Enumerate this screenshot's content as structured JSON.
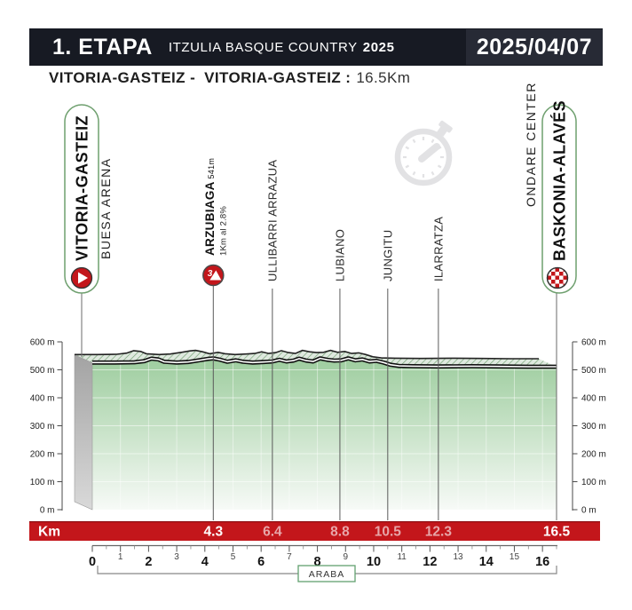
{
  "header": {
    "stage": "1. ETAPA",
    "race": "ITZULIA BASQUE COUNTRY",
    "year": "2025",
    "date": "2025/04/07"
  },
  "route": {
    "start": "VITORIA-GASTEIZ -",
    "finish": "VITORIA-GASTEIZ :",
    "distance": "16.5Km"
  },
  "colors": {
    "header_bg": "#171a23",
    "header_panel_bg": "#272a35",
    "accent_red": "#c3161b",
    "km_label_light": "#e7a6a9",
    "pill_border": "#6fa06f",
    "region_border": "#62a06f",
    "profile_green_top": "#9acb9b",
    "profile_green_bottom": "#f7faf7",
    "hatch_line": "#719f71",
    "hatch_bg": "#dfe9df",
    "side_gray_top": "#a3a3a3",
    "side_gray_bottom": "#d9d9d9",
    "stopwatch_gray": "#e2e2e4",
    "road_black": "#101010"
  },
  "chart_data": {
    "type": "area",
    "title": "Stage elevation profile",
    "xlabel": "Km",
    "x_unit": "km",
    "y_unit": "m",
    "xlim": [
      0,
      16.5
    ],
    "ylim": [
      0,
      600
    ],
    "y_ticks": [
      600,
      500,
      400,
      300,
      200,
      100,
      0
    ],
    "ruler_max": 16,
    "ruler_end": 16.5,
    "region_label": "ARABA",
    "profile": [
      [
        0,
        526
      ],
      [
        0.8,
        526
      ],
      [
        1.5,
        527
      ],
      [
        1.85,
        531
      ],
      [
        2.1,
        540
      ],
      [
        2.35,
        537
      ],
      [
        2.55,
        529
      ],
      [
        3.0,
        526
      ],
      [
        3.4,
        528
      ],
      [
        3.8,
        534
      ],
      [
        4.1,
        539
      ],
      [
        4.3,
        541
      ],
      [
        4.55,
        536
      ],
      [
        4.8,
        529
      ],
      [
        5.1,
        534
      ],
      [
        5.35,
        529
      ],
      [
        5.7,
        526
      ],
      [
        6.1,
        528
      ],
      [
        6.4,
        530
      ],
      [
        6.65,
        536
      ],
      [
        6.9,
        530
      ],
      [
        7.15,
        533
      ],
      [
        7.35,
        540
      ],
      [
        7.6,
        533
      ],
      [
        7.85,
        530
      ],
      [
        8.1,
        541
      ],
      [
        8.35,
        536
      ],
      [
        8.6,
        533
      ],
      [
        8.85,
        534
      ],
      [
        9.1,
        541
      ],
      [
        9.35,
        534
      ],
      [
        9.6,
        537
      ],
      [
        9.85,
        530
      ],
      [
        10.1,
        532
      ],
      [
        10.35,
        526
      ],
      [
        10.6,
        518
      ],
      [
        10.9,
        514
      ],
      [
        11.4,
        513
      ],
      [
        12.3,
        512
      ],
      [
        13.5,
        513
      ],
      [
        14.5,
        512
      ],
      [
        15.5,
        511
      ],
      [
        16.5,
        511
      ]
    ],
    "waypoints": [
      {
        "name": "VITORIA-GASTEIZ",
        "sub": "BUESA ARENA",
        "km": 0,
        "type": "start"
      },
      {
        "name": "ARZUBIAGA",
        "elev": "541m",
        "note": "1Km al 2.8%",
        "km": 4.3,
        "type": "climb",
        "category": "3"
      },
      {
        "name": "ULLIBARRI ARRAZUA",
        "km": 6.4,
        "type": "pass"
      },
      {
        "name": "LUBIANO",
        "km": 8.8,
        "type": "pass"
      },
      {
        "name": "JUNGITU",
        "km": 10.5,
        "type": "pass"
      },
      {
        "name": "ILARRATZA",
        "km": 12.3,
        "type": "pass"
      },
      {
        "name": "BASKONIA-ALAVÉS",
        "sub": "ONDARE CENTER",
        "km": 16.5,
        "type": "finish"
      }
    ],
    "icons": [
      "stopwatch-icon",
      "start-play-icon",
      "finish-checker-icon",
      "climb-mountain-icon"
    ]
  }
}
